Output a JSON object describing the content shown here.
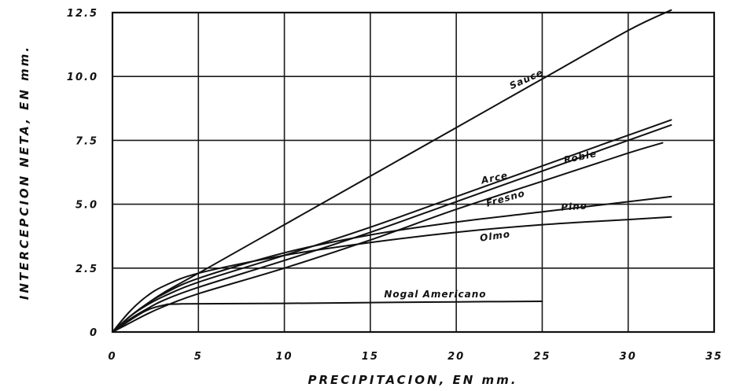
{
  "chart_data": {
    "type": "line",
    "title": "",
    "xlabel": "PRECIPITACION,  EN  mm.",
    "ylabel": "INTERCEPCION NETA, EN mm.",
    "xlim": [
      0,
      35
    ],
    "ylim": [
      0,
      12.5
    ],
    "xticks": [
      "0",
      "5",
      "10",
      "15",
      "20",
      "25",
      "30",
      "35"
    ],
    "yticks": [
      "0",
      "2.5",
      "5.0",
      "7.5",
      "10.0",
      "12.5"
    ],
    "grid": true,
    "series": [
      {
        "name": "Sauce",
        "x": [
          0,
          1,
          2,
          3,
          5,
          10,
          15,
          20,
          25,
          30,
          32.5
        ],
        "y": [
          0,
          0.6,
          1.1,
          1.55,
          2.3,
          4.2,
          6.1,
          8.0,
          9.9,
          11.8,
          12.6
        ]
      },
      {
        "name": "Arce",
        "x": [
          0,
          1,
          2,
          3,
          5,
          10,
          15,
          20,
          25,
          30,
          32.5
        ],
        "y": [
          0,
          0.6,
          1.05,
          1.4,
          1.95,
          3.0,
          4.1,
          5.3,
          6.5,
          7.7,
          8.3
        ]
      },
      {
        "name": "Roble",
        "x": [
          0,
          1,
          2,
          3,
          5,
          10,
          15,
          20,
          25,
          30,
          32.5
        ],
        "y": [
          0,
          0.5,
          0.9,
          1.25,
          1.75,
          2.8,
          3.9,
          5.1,
          6.3,
          7.5,
          8.1
        ]
      },
      {
        "name": "Fresno",
        "x": [
          0,
          1,
          2,
          3,
          5,
          10,
          15,
          20,
          25,
          30,
          32
        ],
        "y": [
          0,
          0.35,
          0.7,
          1.0,
          1.5,
          2.5,
          3.6,
          4.8,
          5.9,
          7.0,
          7.4
        ]
      },
      {
        "name": "Pino",
        "x": [
          0,
          1,
          2,
          3,
          5,
          10,
          15,
          20,
          25,
          30,
          32.5
        ],
        "y": [
          0,
          0.6,
          1.1,
          1.5,
          2.1,
          3.1,
          3.8,
          4.3,
          4.7,
          5.1,
          5.3
        ]
      },
      {
        "name": "Olmo",
        "x": [
          0,
          1,
          2,
          3,
          5,
          10,
          15,
          20,
          25,
          30,
          32.5
        ],
        "y": [
          0,
          0.8,
          1.4,
          1.8,
          2.3,
          3.0,
          3.5,
          3.9,
          4.2,
          4.4,
          4.5
        ]
      },
      {
        "name": "Nogal Americano",
        "x": [
          0,
          1,
          2,
          3,
          4,
          10,
          15,
          20,
          25
        ],
        "y": [
          0,
          0.45,
          0.85,
          1.05,
          1.1,
          1.12,
          1.15,
          1.18,
          1.2
        ]
      }
    ],
    "labels": [
      {
        "text": "Sauce",
        "x": 23.2,
        "y": 9.5,
        "angle": -24
      },
      {
        "text": "Arce",
        "x": 21.5,
        "y": 5.8,
        "angle": -12
      },
      {
        "text": "Roble",
        "x": 26.3,
        "y": 6.6,
        "angle": -12
      },
      {
        "text": "Fresno",
        "x": 21.8,
        "y": 4.9,
        "angle": -16
      },
      {
        "text": "Pino",
        "x": 26.1,
        "y": 4.75,
        "angle": -4
      },
      {
        "text": "Olmo",
        "x": 21.4,
        "y": 3.55,
        "angle": -8
      },
      {
        "text": "Nogal Americano",
        "x": 15.8,
        "y": 1.35,
        "angle": 0
      }
    ]
  }
}
